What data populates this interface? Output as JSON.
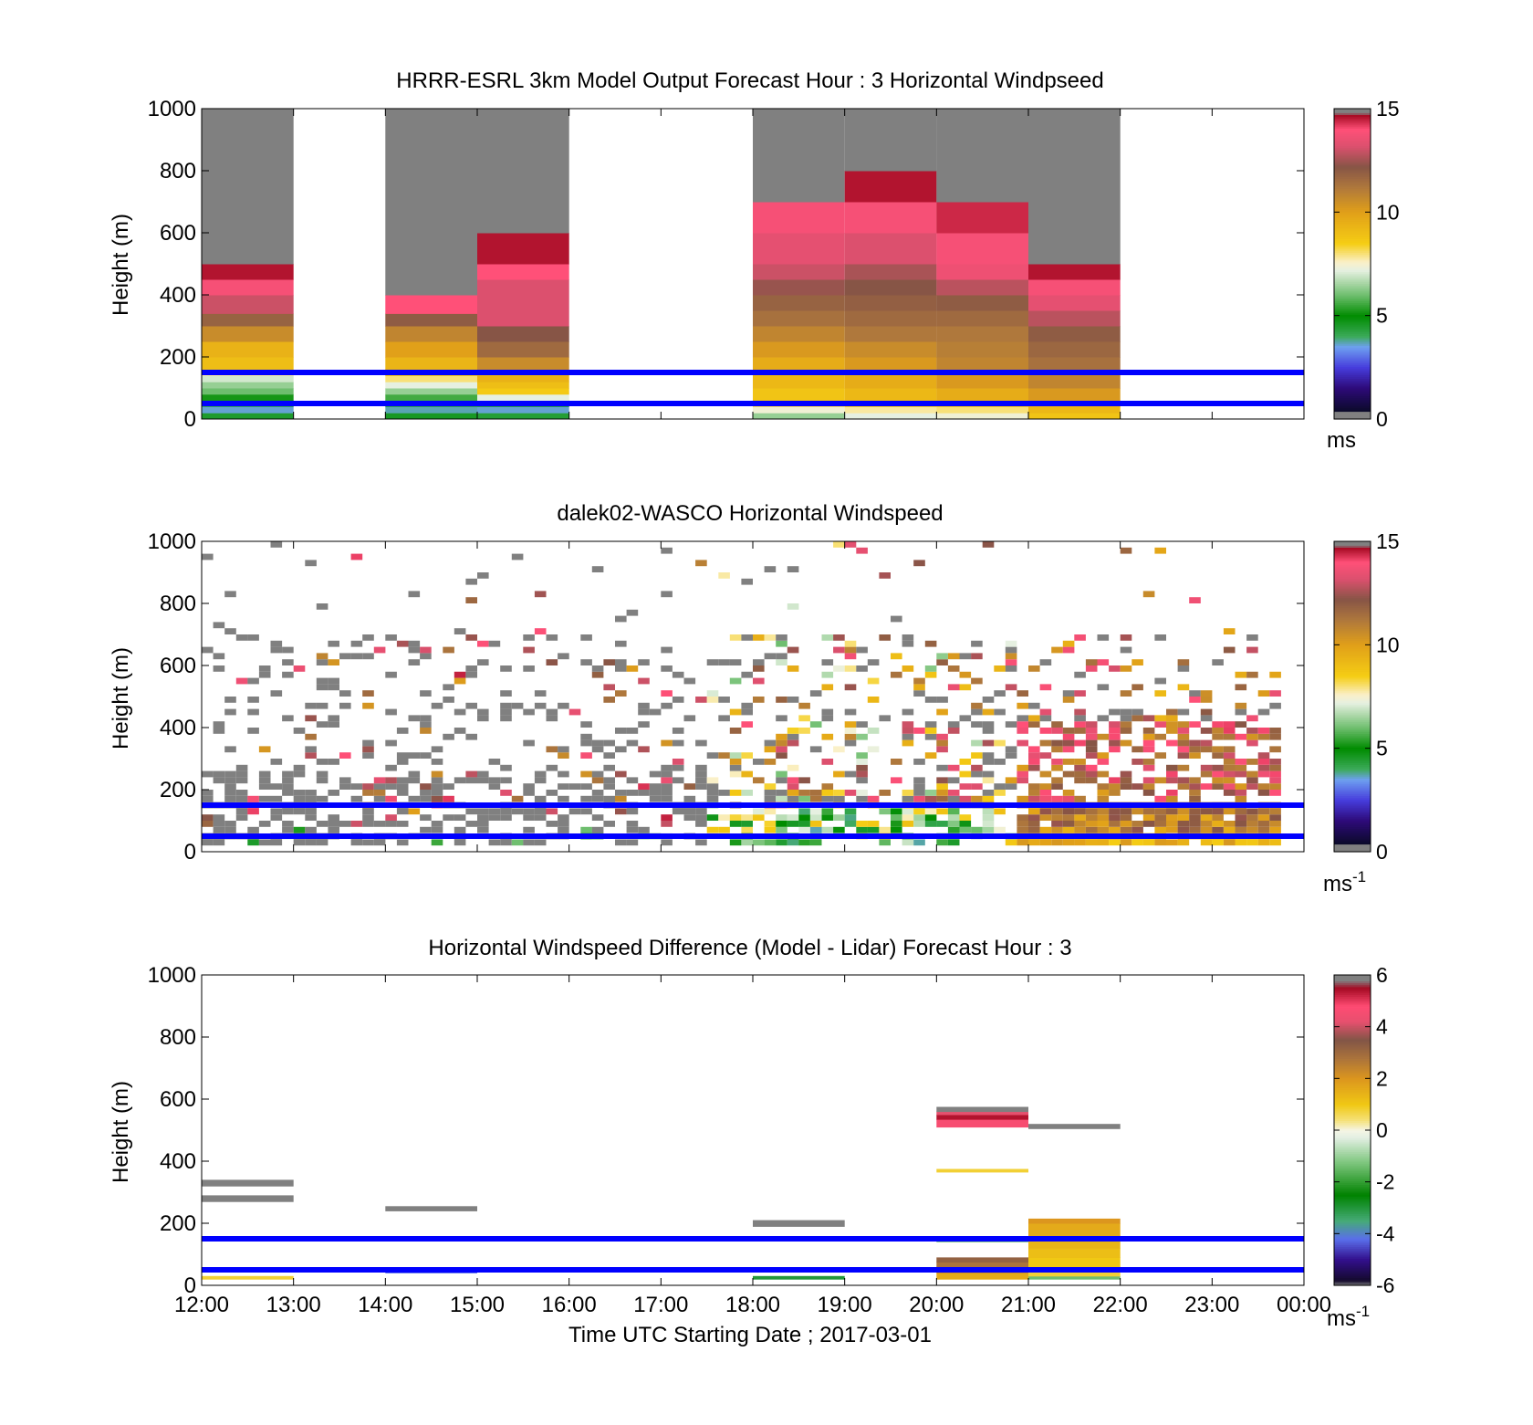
{
  "chart_data": [
    {
      "type": "heatmap",
      "title": "HRRR-ESRL 3km Model Output   Forecast Hour : 3 Horizontal Windpseed",
      "xlabel": "",
      "ylabel": "Height (m)",
      "xlim": [
        12,
        24
      ],
      "ylim": [
        0,
        1000
      ],
      "yticks": [
        "0",
        "200",
        "400",
        "600",
        "800",
        "1000"
      ],
      "grid": false,
      "colorbar": {
        "range": [
          0,
          15
        ],
        "ticks": [
          "0",
          "5",
          "10",
          "15"
        ],
        "unit": "ms",
        "unit_sup": "",
        "scale": "speed"
      },
      "reference_lines_m": [
        50,
        150
      ],
      "reference_line_color": "#0000ff",
      "cells": [
        {
          "t0": 12,
          "t1": 13,
          "bins": [
            [
              0,
              20,
              4.5
            ],
            [
              20,
              40,
              3.6
            ],
            [
              40,
              60,
              4.2
            ],
            [
              60,
              80,
              5.2
            ],
            [
              80,
              100,
              6.0
            ],
            [
              100,
              120,
              6.4
            ],
            [
              120,
              140,
              7.0
            ],
            [
              140,
              160,
              7.8
            ],
            [
              160,
              200,
              9.0
            ],
            [
              200,
              250,
              9.4
            ],
            [
              250,
              300,
              10.6
            ],
            [
              300,
              340,
              11.8
            ],
            [
              340,
              400,
              13.0
            ],
            [
              400,
              450,
              13.8
            ],
            [
              450,
              500,
              14.6
            ],
            [
              500,
              1000,
              15.5
            ]
          ]
        },
        {
          "t0": 14,
          "t1": 15,
          "bins": [
            [
              0,
              20,
              4.6
            ],
            [
              20,
              40,
              3.7
            ],
            [
              40,
              60,
              4.3
            ],
            [
              60,
              80,
              5.6
            ],
            [
              80,
              100,
              6.4
            ],
            [
              100,
              120,
              7.2
            ],
            [
              120,
              140,
              8.0
            ],
            [
              140,
              160,
              8.8
            ],
            [
              160,
              200,
              9.3
            ],
            [
              200,
              250,
              10.0
            ],
            [
              250,
              300,
              10.8
            ],
            [
              300,
              340,
              12.0
            ],
            [
              340,
              400,
              14.0
            ],
            [
              400,
              1000,
              15.5
            ]
          ]
        },
        {
          "t0": 15,
          "t1": 16,
          "bins": [
            [
              0,
              20,
              4.4
            ],
            [
              20,
              40,
              3.6
            ],
            [
              40,
              60,
              4.4
            ],
            [
              60,
              80,
              7.2
            ],
            [
              80,
              100,
              8.6
            ],
            [
              100,
              120,
              9.0
            ],
            [
              120,
              150,
              9.4
            ],
            [
              150,
              200,
              10.6
            ],
            [
              200,
              250,
              11.6
            ],
            [
              250,
              300,
              12.2
            ],
            [
              300,
              450,
              13.2
            ],
            [
              450,
              500,
              14.0
            ],
            [
              500,
              600,
              14.6
            ],
            [
              600,
              1000,
              15.5
            ]
          ]
        },
        {
          "t0": 18,
          "t1": 19,
          "bins": [
            [
              0,
              20,
              6.4
            ],
            [
              20,
              40,
              7.4
            ],
            [
              40,
              60,
              8.2
            ],
            [
              60,
              100,
              8.8
            ],
            [
              100,
              150,
              9.2
            ],
            [
              150,
              200,
              9.6
            ],
            [
              200,
              250,
              10.2
            ],
            [
              250,
              300,
              10.8
            ],
            [
              300,
              350,
              11.4
            ],
            [
              350,
              400,
              11.8
            ],
            [
              400,
              450,
              12.4
            ],
            [
              450,
              500,
              13.0
            ],
            [
              500,
              600,
              13.4
            ],
            [
              600,
              700,
              13.8
            ],
            [
              700,
              800,
              14.8
            ],
            [
              800,
              1000,
              15.5
            ]
          ]
        },
        {
          "t0": 19,
          "t1": 20,
          "bins": [
            [
              0,
              20,
              7.2
            ],
            [
              20,
              40,
              7.8
            ],
            [
              40,
              60,
              8.6
            ],
            [
              60,
              100,
              9.2
            ],
            [
              100,
              150,
              9.6
            ],
            [
              150,
              200,
              10.2
            ],
            [
              200,
              250,
              10.6
            ],
            [
              250,
              300,
              11.2
            ],
            [
              300,
              350,
              11.6
            ],
            [
              350,
              400,
              11.9
            ],
            [
              400,
              450,
              12.2
            ],
            [
              450,
              500,
              12.6
            ],
            [
              500,
              600,
              13.2
            ],
            [
              600,
              700,
              13.8
            ],
            [
              700,
              800,
              14.6
            ],
            [
              800,
              1000,
              15.5
            ]
          ]
        },
        {
          "t0": 20,
          "t1": 21,
          "bins": [
            [
              0,
              20,
              7.4
            ],
            [
              20,
              40,
              8.0
            ],
            [
              40,
              60,
              8.8
            ],
            [
              60,
              100,
              9.6
            ],
            [
              100,
              150,
              10.2
            ],
            [
              150,
              200,
              10.8
            ],
            [
              200,
              250,
              11.0
            ],
            [
              250,
              300,
              11.2
            ],
            [
              300,
              350,
              11.6
            ],
            [
              350,
              400,
              12.0
            ],
            [
              400,
              450,
              12.8
            ],
            [
              450,
              500,
              13.6
            ],
            [
              500,
              600,
              13.8
            ],
            [
              600,
              700,
              14.4
            ],
            [
              700,
              800,
              14.8
            ],
            [
              800,
              1000,
              15.5
            ]
          ]
        },
        {
          "t0": 21,
          "t1": 22,
          "bins": [
            [
              0,
              20,
              8.8
            ],
            [
              20,
              40,
              9.2
            ],
            [
              40,
              60,
              9.6
            ],
            [
              60,
              100,
              10.2
            ],
            [
              100,
              150,
              10.8
            ],
            [
              150,
              200,
              11.4
            ],
            [
              200,
              250,
              11.7
            ],
            [
              250,
              300,
              12.0
            ],
            [
              300,
              350,
              12.8
            ],
            [
              350,
              400,
              13.4
            ],
            [
              400,
              450,
              13.8
            ],
            [
              450,
              500,
              14.6
            ],
            [
              500,
              1000,
              15.5
            ]
          ]
        }
      ]
    },
    {
      "type": "heatmap",
      "title": "dalek02-WASCO  Horizontal Windspeed",
      "xlabel": "",
      "ylabel": "Height (m)",
      "xlim": [
        12,
        24
      ],
      "ylim": [
        0,
        1000
      ],
      "yticks": [
        "0",
        "200",
        "400",
        "600",
        "800",
        "1000"
      ],
      "grid": false,
      "colorbar": {
        "range": [
          0,
          15
        ],
        "ticks": [
          "0",
          "5",
          "10",
          "15"
        ],
        "unit": "ms",
        "unit_sup": "-1",
        "scale": "speed"
      },
      "reference_lines_m": [
        50,
        150
      ],
      "reference_line_color": "#0000ff",
      "range_gate_m": 20,
      "scan_interval_h": 0.125,
      "cells": []
    },
    {
      "type": "heatmap",
      "title": "Horizontal Windspeed Difference (Model - Lidar) Forecast Hour : 3",
      "xlabel": "Time UTC  Starting Date ; 2017-03-01",
      "ylabel": "Height (m)",
      "xlim": [
        12,
        24
      ],
      "ylim": [
        0,
        1000
      ],
      "xticks": [
        "12:00",
        "13:00",
        "14:00",
        "15:00",
        "16:00",
        "17:00",
        "18:00",
        "19:00",
        "20:00",
        "21:00",
        "22:00",
        "23:00",
        "00:00"
      ],
      "yticks": [
        "0",
        "200",
        "400",
        "600",
        "800",
        "1000"
      ],
      "grid": false,
      "colorbar": {
        "range": [
          -6,
          6
        ],
        "ticks": [
          "-6",
          "-4",
          "-2",
          "0",
          "2",
          "4",
          "6"
        ],
        "unit": "ms",
        "unit_sup": "-1",
        "scale": "diff"
      },
      "reference_lines_m": [
        50,
        150
      ],
      "reference_line_color": "#0000ff",
      "cells": [
        {
          "t0": 12,
          "t1": 13,
          "bins": [
            [
              20,
              30,
              0.8
            ],
            [
              270,
              290,
              6.5
            ],
            [
              320,
              340,
              6.5
            ]
          ]
        },
        {
          "t0": 14,
          "t1": 15,
          "bins": [
            [
              240,
              255,
              6.5
            ],
            [
              40,
              50,
              -4.2
            ]
          ]
        },
        {
          "t0": 18,
          "t1": 19,
          "bins": [
            [
              190,
              210,
              6.5
            ],
            [
              20,
              30,
              -3.0
            ]
          ]
        },
        {
          "t0": 20,
          "t1": 21,
          "bins": [
            [
              20,
              40,
              1.6
            ],
            [
              40,
              60,
              2.2
            ],
            [
              60,
              75,
              2.8
            ],
            [
              75,
              90,
              3.2
            ],
            [
              140,
              150,
              -1.2
            ],
            [
              365,
              375,
              0.8
            ],
            [
              510,
              535,
              4.6
            ],
            [
              535,
              550,
              5.4
            ],
            [
              550,
              560,
              4.2
            ],
            [
              560,
              575,
              6.5
            ]
          ]
        },
        {
          "t0": 21,
          "t1": 22,
          "bins": [
            [
              20,
              30,
              -1.4
            ],
            [
              30,
              60,
              0.8
            ],
            [
              60,
              90,
              1.0
            ],
            [
              90,
              120,
              1.2
            ],
            [
              120,
              160,
              1.4
            ],
            [
              160,
              200,
              1.6
            ],
            [
              200,
              215,
              2.0
            ],
            [
              505,
              520,
              6.5
            ]
          ]
        }
      ]
    }
  ]
}
